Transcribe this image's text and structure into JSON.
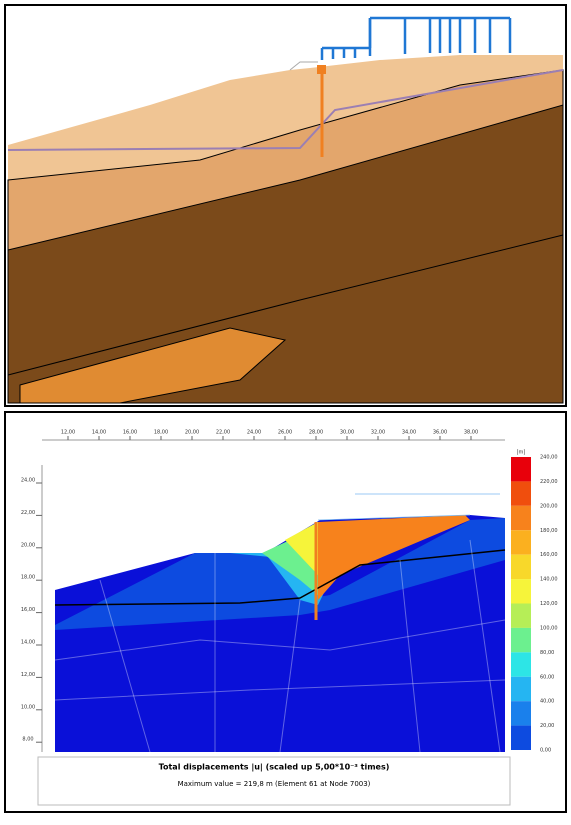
{
  "output_view": {
    "x_ticks": [
      {
        "value": 12,
        "label": "12,00"
      },
      {
        "value": 14,
        "label": "14,00"
      },
      {
        "value": 16,
        "label": "16,00"
      },
      {
        "value": 18,
        "label": "18,00"
      },
      {
        "value": 20,
        "label": "20,00"
      },
      {
        "value": 22,
        "label": "22,00"
      },
      {
        "value": 24,
        "label": "24,00"
      },
      {
        "value": 26,
        "label": "26,00"
      },
      {
        "value": 28,
        "label": "28,00"
      },
      {
        "value": 30,
        "label": "30,00"
      },
      {
        "value": 32,
        "label": "32,00"
      },
      {
        "value": 34,
        "label": "34,00"
      },
      {
        "value": 36,
        "label": "36,00"
      },
      {
        "value": 38,
        "label": "38,00"
      }
    ],
    "y_ticks": [
      {
        "value": 24,
        "label": "24,00"
      },
      {
        "value": 22,
        "label": "22,00"
      },
      {
        "value": 20,
        "label": "20,00"
      },
      {
        "value": 18,
        "label": "18,00"
      },
      {
        "value": 16,
        "label": "16,00"
      },
      {
        "value": 14,
        "label": "14,00"
      },
      {
        "value": 12,
        "label": "12,00"
      },
      {
        "value": 10,
        "label": "10,00"
      },
      {
        "value": 8,
        "label": "8,00"
      }
    ],
    "legend": {
      "unit": "[m]",
      "ticks": [
        {
          "value": 240,
          "label": "240,00"
        },
        {
          "value": 220,
          "label": "220,00"
        },
        {
          "value": 200,
          "label": "200,00"
        },
        {
          "value": 180,
          "label": "180,00"
        },
        {
          "value": 160,
          "label": "160,00"
        },
        {
          "value": 140,
          "label": "140,00"
        },
        {
          "value": 120,
          "label": "120,00"
        },
        {
          "value": 100,
          "label": "100,00"
        },
        {
          "value": 80,
          "label": "80,00"
        },
        {
          "value": 60,
          "label": "60,00"
        },
        {
          "value": 40,
          "label": "40,00"
        },
        {
          "value": 20,
          "label": "20,00"
        },
        {
          "value": 0,
          "label": "0,00"
        }
      ],
      "colors": [
        "#e8000b",
        "#f04e0d",
        "#f7821c",
        "#fbb01f",
        "#f8d82a",
        "#f6f43a",
        "#b6ee57",
        "#6cf08f",
        "#2de5e6",
        "#25b5f2",
        "#1a80ec",
        "#0d4be0"
      ]
    },
    "caption": "Total displacements |u| (scaled up 5,00*10⁻³ times)",
    "max_value": "Maximum value = 219,8 m (Element 61 at Node 7003)"
  }
}
